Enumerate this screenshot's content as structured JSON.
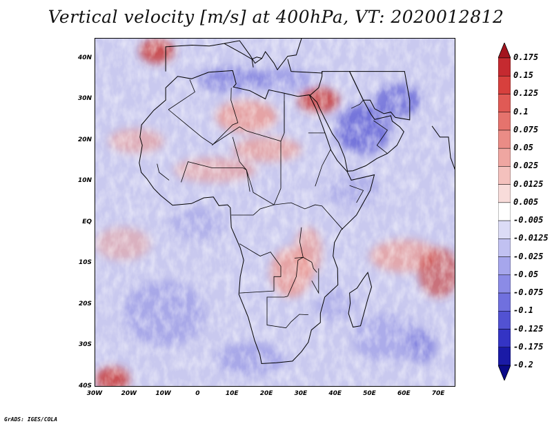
{
  "title": "Vertical velocity [m/s] at 400hPa, VT: 2020012812",
  "credit": "GrADS: IGES/COLA",
  "axes": {
    "lat_ticks": [
      "40N",
      "30N",
      "20N",
      "10N",
      "EQ",
      "10S",
      "20S",
      "30S",
      "40S"
    ],
    "lon_ticks": [
      "30W",
      "20W",
      "10W",
      "0",
      "10E",
      "20E",
      "30E",
      "40E",
      "50E",
      "60E",
      "70E"
    ],
    "lon_range": [
      -30,
      75
    ],
    "lat_range": [
      -40,
      45
    ]
  },
  "colorbar": {
    "levels": [
      "0.175",
      "0.15",
      "0.125",
      "0.1",
      "0.075",
      "0.05",
      "0.025",
      "0.0125",
      "0.005",
      "-0.005",
      "-0.0125",
      "-0.025",
      "-0.05",
      "-0.075",
      "-0.1",
      "-0.125",
      "-0.175",
      "-0.2"
    ],
    "colors": [
      "#a3141e",
      "#c52a30",
      "#d7403d",
      "#e05a55",
      "#e5736d",
      "#ea8c86",
      "#efa6a1",
      "#f4c1bd",
      "#f8dcda",
      "#ffffff",
      "#dcdcf6",
      "#c1c1f1",
      "#a6a6ec",
      "#8b8be6",
      "#7070de",
      "#5252d2",
      "#3434c4",
      "#1a1aa6",
      "#0a0a88"
    ]
  },
  "field_colors": {
    "base": "#c9c9ef",
    "blue_strong": "#6b6bd8",
    "blue_mid": "#9a9ae6",
    "red_mid": "#ec9a92",
    "red_strong": "#c9352f",
    "white": "#ffffff"
  }
}
